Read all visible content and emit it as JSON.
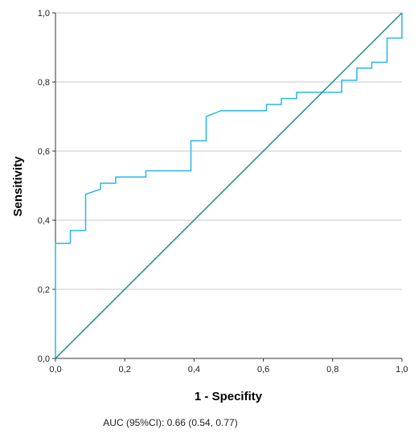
{
  "chart_data": {
    "type": "line",
    "xlabel": "1 - Specifity",
    "ylabel": "Sensitivity",
    "xlim": [
      0,
      1
    ],
    "ylim": [
      0,
      1
    ],
    "x_ticks": [
      "0,0",
      "0,2",
      "0,4",
      "0,6",
      "0,8",
      "1,0"
    ],
    "y_ticks": [
      "0,0",
      "0,2",
      "0,4",
      "0,6",
      "0,8",
      "1,0"
    ],
    "grid": "horizontal",
    "caption": "AUC (95%CI): 0.66 (0.54, 0.77)",
    "series": [
      {
        "role": "roc-curve",
        "color": "#29b6e6",
        "step": true,
        "points": [
          [
            0,
            0
          ],
          [
            0,
            0.333
          ],
          [
            0.043,
            0.333
          ],
          [
            0.043,
            0.37
          ],
          [
            0.087,
            0.37
          ],
          [
            0.087,
            0.472
          ],
          [
            0.087,
            0.475
          ],
          [
            0.13,
            0.49
          ],
          [
            0.13,
            0.507
          ],
          [
            0.174,
            0.507
          ],
          [
            0.174,
            0.525
          ],
          [
            0.261,
            0.525
          ],
          [
            0.261,
            0.543
          ],
          [
            0.391,
            0.543
          ],
          [
            0.391,
            0.63
          ],
          [
            0.435,
            0.63
          ],
          [
            0.435,
            0.7
          ],
          [
            0.478,
            0.717
          ],
          [
            0.609,
            0.717
          ],
          [
            0.609,
            0.735
          ],
          [
            0.652,
            0.735
          ],
          [
            0.652,
            0.752
          ],
          [
            0.696,
            0.752
          ],
          [
            0.696,
            0.77
          ],
          [
            0.826,
            0.77
          ],
          [
            0.826,
            0.805
          ],
          [
            0.87,
            0.805
          ],
          [
            0.87,
            0.84
          ],
          [
            0.913,
            0.84
          ],
          [
            0.913,
            0.857
          ],
          [
            0.957,
            0.857
          ],
          [
            0.957,
            0.927
          ],
          [
            1.0,
            0.927
          ],
          [
            1.0,
            1.0
          ]
        ]
      },
      {
        "role": "reference-line",
        "color": "#1a8f8f",
        "step": false,
        "points": [
          [
            0,
            0
          ],
          [
            1,
            1
          ]
        ]
      }
    ]
  }
}
